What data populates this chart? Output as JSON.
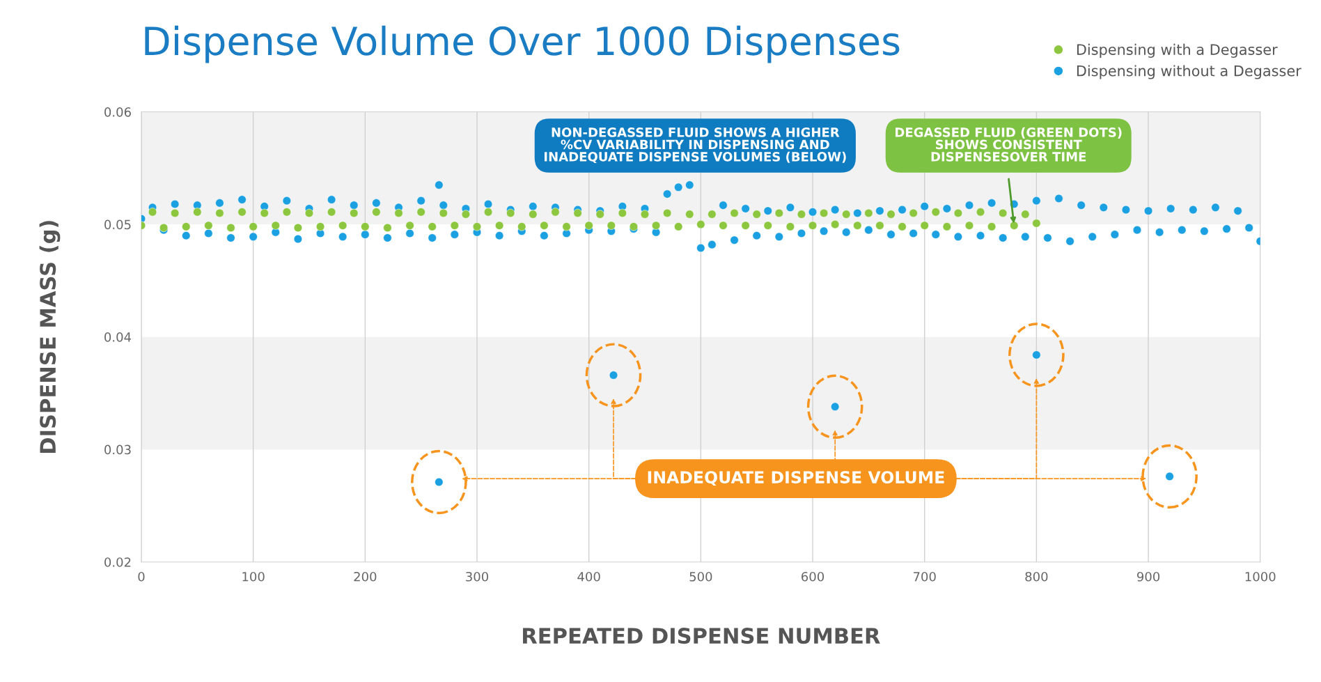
{
  "chart_data": {
    "type": "scatter",
    "title": "Dispense Volume Over 1000 Dispenses",
    "xlabel": "REPEATED DISPENSE NUMBER",
    "ylabel": "DISPENSE MASS (g)",
    "xlim": [
      0,
      1000
    ],
    "xticks": [
      0,
      100,
      200,
      300,
      400,
      500,
      600,
      700,
      800,
      900,
      1000
    ],
    "ylim": [
      0.02,
      0.06
    ],
    "yticks": [
      0.02,
      0.03,
      0.04,
      0.05,
      0.06
    ],
    "grid": "x",
    "legend": "top right",
    "marker": "circle",
    "bands": [
      {
        "axis": "y",
        "from": 0.05,
        "to": 0.06,
        "label": null,
        "color": "#f2f2f2"
      },
      {
        "axis": "y",
        "from": 0.03,
        "to": 0.04,
        "label": null,
        "color": "#f2f2f2"
      }
    ],
    "annotations": [
      "NON-DEGASSED FLUID SHOWS A HIGHER\n%CV VARIABILITY IN DISPENSING AND\nINADEQUATE DISPENSE VOLUMES (BELOW)",
      "DEGASSED FLUID (GREEN DOTS)\nSHOWS CONSISTENT\nDISPENSESOVER TIME",
      "INADEQUATE DISPENSE VOLUME"
    ],
    "series": [
      {
        "name": "Dispensing without a Degasser",
        "color": "#1ba1e2",
        "x": [
          0,
          10,
          20,
          30,
          40,
          50,
          60,
          70,
          80,
          90,
          100,
          110,
          120,
          130,
          140,
          150,
          160,
          170,
          180,
          190,
          200,
          210,
          220,
          230,
          240,
          250,
          260,
          270,
          280,
          290,
          300,
          310,
          320,
          330,
          340,
          350,
          360,
          370,
          380,
          390,
          400,
          410,
          420,
          430,
          440,
          450,
          460,
          470,
          480,
          490,
          500,
          510,
          520,
          530,
          540,
          550,
          560,
          570,
          580,
          590,
          600,
          610,
          620,
          630,
          640,
          650,
          660,
          670,
          680,
          690,
          700,
          710,
          720,
          730,
          740,
          750,
          760,
          770,
          780,
          790,
          800,
          810,
          820,
          830,
          840,
          850,
          860,
          870,
          880,
          890,
          900,
          910,
          920,
          930,
          940,
          950,
          960,
          970,
          980,
          990,
          1000,
          266,
          266,
          422,
          620,
          800,
          919
        ],
        "values": [
          0.0505,
          0.0515,
          0.0495,
          0.0518,
          0.049,
          0.0517,
          0.0492,
          0.0519,
          0.0488,
          0.0522,
          0.0489,
          0.0516,
          0.0493,
          0.0521,
          0.0487,
          0.0514,
          0.0492,
          0.0522,
          0.0489,
          0.0517,
          0.0491,
          0.0519,
          0.0488,
          0.0515,
          0.0492,
          0.0521,
          0.0488,
          0.0517,
          0.0491,
          0.0514,
          0.0493,
          0.0518,
          0.049,
          0.0513,
          0.0494,
          0.0516,
          0.049,
          0.0515,
          0.0492,
          0.0513,
          0.0495,
          0.0512,
          0.0494,
          0.0516,
          0.0496,
          0.0514,
          0.0493,
          0.0527,
          0.0533,
          0.0535,
          0.0479,
          0.0482,
          0.0517,
          0.0486,
          0.0514,
          0.049,
          0.0512,
          0.0489,
          0.0515,
          0.0492,
          0.0511,
          0.0494,
          0.0513,
          0.0493,
          0.051,
          0.0495,
          0.0512,
          0.0491,
          0.0513,
          0.0492,
          0.0516,
          0.0491,
          0.0514,
          0.0489,
          0.0517,
          0.049,
          0.0519,
          0.0488,
          0.0518,
          0.0489,
          0.0521,
          0.0488,
          0.0523,
          0.0485,
          0.0517,
          0.0489,
          0.0515,
          0.0491,
          0.0513,
          0.0495,
          0.0512,
          0.0493,
          0.0514,
          0.0495,
          0.0513,
          0.0494,
          0.0515,
          0.0496,
          0.0512,
          0.0497,
          0.0485,
          0.0535,
          0.0271,
          0.0366,
          0.0338,
          0.0384,
          0.0276
        ]
      },
      {
        "name": "Dispensing with a Degasser",
        "color": "#8dc63f",
        "x": [
          0,
          10,
          20,
          30,
          40,
          50,
          60,
          70,
          80,
          90,
          100,
          110,
          120,
          130,
          140,
          150,
          160,
          170,
          180,
          190,
          200,
          210,
          220,
          230,
          240,
          250,
          260,
          270,
          280,
          290,
          300,
          310,
          320,
          330,
          340,
          350,
          360,
          370,
          380,
          390,
          400,
          410,
          420,
          430,
          440,
          450,
          460,
          470,
          480,
          490,
          500,
          510,
          520,
          530,
          540,
          550,
          560,
          570,
          580,
          590,
          600,
          610,
          620,
          630,
          640,
          650,
          660,
          670,
          680,
          690,
          700,
          710,
          720,
          730,
          740,
          750,
          760,
          770,
          780,
          790,
          800
        ],
        "values": [
          0.0499,
          0.0511,
          0.0497,
          0.051,
          0.0498,
          0.0511,
          0.0499,
          0.051,
          0.0497,
          0.0511,
          0.0498,
          0.051,
          0.0499,
          0.0511,
          0.0497,
          0.051,
          0.0498,
          0.0511,
          0.0499,
          0.051,
          0.0498,
          0.0511,
          0.0497,
          0.051,
          0.0499,
          0.0511,
          0.0498,
          0.051,
          0.0499,
          0.0509,
          0.0498,
          0.0511,
          0.0499,
          0.051,
          0.0498,
          0.0509,
          0.0499,
          0.0511,
          0.0498,
          0.051,
          0.0499,
          0.0509,
          0.0499,
          0.051,
          0.0498,
          0.0509,
          0.0499,
          0.051,
          0.0498,
          0.0509,
          0.05,
          0.0509,
          0.0499,
          0.051,
          0.0499,
          0.0509,
          0.0499,
          0.051,
          0.0498,
          0.0509,
          0.0499,
          0.051,
          0.05,
          0.0509,
          0.0499,
          0.051,
          0.0499,
          0.0509,
          0.0498,
          0.051,
          0.0499,
          0.0511,
          0.0498,
          0.051,
          0.0499,
          0.0511,
          0.0498,
          0.051,
          0.0499,
          0.0509,
          0.0501
        ]
      }
    ]
  }
}
